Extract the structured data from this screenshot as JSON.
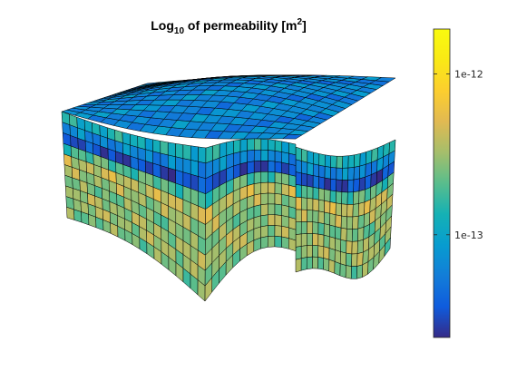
{
  "chart_data": {
    "type": "heatmap",
    "title": {
      "prefix": "Log",
      "subscript": "10",
      "middle": " of permeability [m",
      "superscript": "2",
      "suffix": "]"
    },
    "colorbar": {
      "colormap": "parula",
      "scale": "log",
      "range": [
        2.3e-14,
        1.9e-12
      ],
      "ticks": [
        {
          "value": 1e-12,
          "label": "1e-12"
        },
        {
          "value": 1e-13,
          "label": "1e-13"
        }
      ]
    },
    "grid": {
      "columns_front": 19,
      "columns_side": 17,
      "columns_depth": 16,
      "layers": 10,
      "layer_log10_permeability": [
        -12.9,
        -13.2,
        -13.5,
        -12.7,
        -12.4,
        -12.5,
        -12.6,
        -12.5,
        -12.5,
        -12.6
      ],
      "top_surface_log10_permeability": -13.2
    }
  }
}
